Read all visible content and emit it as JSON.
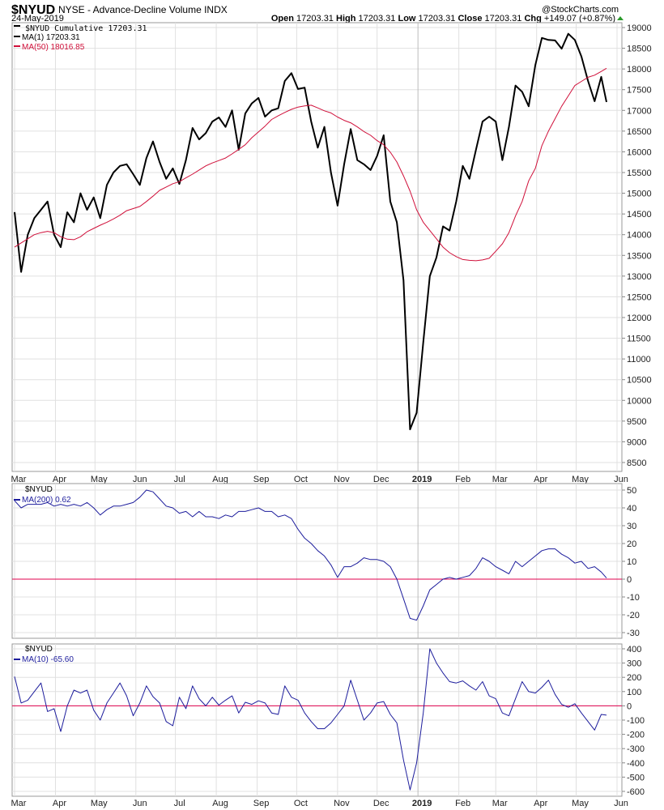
{
  "header": {
    "symbol": "$NYUD",
    "name": "NYSE - Advance-Decline Volume INDX",
    "brand": "@StockCharts.com",
    "date": "24-May-2019",
    "open_label": "Open",
    "open": "17203.31",
    "high_label": "High",
    "high": "17203.31",
    "low_label": "Low",
    "low": "17203.31",
    "close_label": "Close",
    "close": "17203.31",
    "chg_label": "Chg",
    "chg": "+149.07 (+0.87%)",
    "chg_direction": "up"
  },
  "colors": {
    "price": "#000000",
    "ma50": "#d0103a",
    "indicator": "#1c1c9c",
    "zero_line": "#e0004d",
    "grid": "#dddddd"
  },
  "chart_data": [
    {
      "type": "line",
      "panel": "main",
      "legend": [
        "$NYUD Cumulative 17203.31",
        "MA(1) 17203.31",
        "MA(50) 18016.85"
      ],
      "ylim": [
        8500,
        19000
      ],
      "yticks": [
        "19000",
        "18500",
        "18000",
        "17500",
        "17000",
        "16500",
        "16000",
        "15500",
        "15000",
        "14500",
        "14000",
        "13500",
        "13000",
        "12500",
        "12000",
        "11500",
        "11000",
        "10500",
        "10000",
        "9500",
        "9000",
        "8500"
      ],
      "xticks": [
        "Mar",
        "Apr",
        "May",
        "Jun",
        "Jul",
        "Aug",
        "Sep",
        "Oct",
        "Nov",
        "Dec",
        "2019",
        "Feb",
        "Mar",
        "Apr",
        "May",
        "Jun"
      ],
      "grid": true,
      "series": [
        {
          "name": "MA(1)",
          "color": "#000000",
          "values": [
            14543,
            13100,
            14000,
            14400,
            14600,
            14800,
            14000,
            13700,
            14540,
            14300,
            15000,
            14600,
            14900,
            14400,
            15200,
            15500,
            15660,
            15700,
            15460,
            15200,
            15850,
            16250,
            15755,
            15350,
            15600,
            15225,
            15800,
            16575,
            16300,
            16450,
            16730,
            16830,
            16600,
            17000,
            16050,
            16925,
            17170,
            17300,
            16850,
            17000,
            17050,
            17710,
            17900,
            17515,
            17550,
            16730,
            16100,
            16600,
            15500,
            14700,
            15700,
            16550,
            15800,
            15700,
            15560,
            15900,
            16400,
            14800,
            14300,
            12900,
            9300,
            9700,
            11400,
            13000,
            13450,
            14200,
            14100,
            14800,
            15660,
            15350,
            16050,
            16730,
            16850,
            16730,
            15800,
            16600,
            17600,
            17450,
            17100,
            18095,
            18750,
            18700,
            18690,
            18490,
            18850,
            18700,
            18300,
            17710,
            17220,
            17810,
            17203.31
          ]
        },
        {
          "name": "MA(50)",
          "color": "#d0103a",
          "values": [
            13700,
            13800,
            13900,
            14000,
            14050,
            14080,
            14050,
            13950,
            13890,
            13880,
            13950,
            14070,
            14150,
            14230,
            14300,
            14380,
            14470,
            14580,
            14630,
            14680,
            14800,
            14930,
            15070,
            15150,
            15230,
            15280,
            15370,
            15460,
            15560,
            15660,
            15730,
            15790,
            15850,
            15950,
            16060,
            16170,
            16340,
            16480,
            16620,
            16780,
            16870,
            16950,
            17025,
            17080,
            17110,
            17125,
            17060,
            16990,
            16940,
            16840,
            16760,
            16700,
            16600,
            16490,
            16400,
            16270,
            16170,
            15990,
            15755,
            15420,
            15050,
            14600,
            14300,
            14100,
            13900,
            13700,
            13565,
            13470,
            13400,
            13380,
            13370,
            13390,
            13430,
            13600,
            13780,
            14050,
            14450,
            14800,
            15300,
            15600,
            16150,
            16500,
            16800,
            17100,
            17350,
            17600,
            17700,
            17800,
            17850,
            17940,
            18016.85
          ]
        }
      ]
    },
    {
      "type": "line",
      "panel": "indicator-1",
      "legend": [
        "$NYUD",
        "MA(200) 0.62"
      ],
      "ylim": [
        -30,
        50
      ],
      "yticks": [
        "50",
        "40",
        "30",
        "20",
        "10",
        "0",
        "-10",
        "-20",
        "-30"
      ],
      "reference_line": 0,
      "grid": true,
      "series": [
        {
          "name": "MA(200)",
          "color": "#1c1c9c",
          "values": [
            44,
            40,
            42,
            42,
            42,
            43,
            41,
            42,
            41,
            42,
            41,
            43,
            40,
            36,
            39,
            41,
            41,
            42,
            43,
            46,
            50,
            49,
            45,
            41,
            40,
            37,
            38,
            35,
            38,
            35,
            35,
            34,
            36,
            35,
            38,
            38,
            39,
            40,
            38,
            38,
            35,
            36,
            34,
            28,
            23,
            20,
            16,
            13,
            8,
            1,
            7,
            7,
            9,
            12,
            11,
            11,
            10,
            7,
            0,
            -11,
            -22,
            -23,
            -15,
            -6,
            -3,
            0,
            1,
            0,
            1,
            2,
            6,
            12,
            10,
            7,
            5,
            3,
            10,
            7,
            10,
            13,
            16,
            17,
            17,
            14,
            12,
            9,
            10,
            6,
            7,
            4,
            0.62
          ]
        }
      ]
    },
    {
      "type": "line",
      "panel": "indicator-2",
      "legend": [
        "$NYUD",
        "MA(10) -65.60"
      ],
      "ylim": [
        -600,
        400
      ],
      "yticks": [
        "400",
        "300",
        "200",
        "100",
        "0",
        "-100",
        "-200",
        "-300",
        "-400",
        "-500",
        "-600"
      ],
      "reference_line": 0,
      "grid": true,
      "series": [
        {
          "name": "MA(10)",
          "color": "#1c1c9c",
          "values": [
            205,
            20,
            40,
            100,
            160,
            -40,
            -20,
            -180,
            0,
            110,
            90,
            110,
            -30,
            -100,
            20,
            90,
            160,
            70,
            -70,
            20,
            140,
            65,
            20,
            -110,
            -140,
            60,
            -20,
            140,
            50,
            0,
            60,
            5,
            40,
            70,
            -50,
            25,
            10,
            35,
            20,
            -50,
            -60,
            140,
            60,
            40,
            -50,
            -110,
            -160,
            -160,
            -120,
            -60,
            0,
            180,
            40,
            -100,
            -50,
            20,
            30,
            -60,
            -120,
            -380,
            -590,
            -400,
            -50,
            400,
            300,
            230,
            170,
            160,
            175,
            140,
            110,
            170,
            70,
            50,
            -50,
            -70,
            50,
            170,
            100,
            90,
            130,
            180,
            80,
            10,
            -10,
            15,
            -50,
            -110,
            -170,
            -60,
            -65.6
          ]
        }
      ]
    }
  ],
  "dates": [
    "2018-03-01",
    "2018-03-06",
    "2018-03-11",
    "2018-03-16",
    "2018-03-21",
    "2018-03-26",
    "2018-03-31",
    "2018-04-05",
    "2018-04-10",
    "2018-04-15",
    "2018-04-20",
    "2018-04-25",
    "2018-04-30",
    "2018-05-05",
    "2018-05-10",
    "2018-05-15",
    "2018-05-20",
    "2018-05-25",
    "2018-05-30",
    "2018-06-04",
    "2018-06-09",
    "2018-06-14",
    "2018-06-19",
    "2018-06-24",
    "2018-06-29",
    "2018-07-04",
    "2018-07-09",
    "2018-07-14",
    "2018-07-19",
    "2018-07-24",
    "2018-07-29",
    "2018-08-03",
    "2018-08-08",
    "2018-08-13",
    "2018-08-18",
    "2018-08-23",
    "2018-08-28",
    "2018-09-02",
    "2018-09-07",
    "2018-09-12",
    "2018-09-17",
    "2018-09-22",
    "2018-09-27",
    "2018-10-02",
    "2018-10-07",
    "2018-10-12",
    "2018-10-17",
    "2018-10-22",
    "2018-10-27",
    "2018-11-01",
    "2018-11-06",
    "2018-11-11",
    "2018-11-16",
    "2018-11-21",
    "2018-11-26",
    "2018-12-01",
    "2018-12-06",
    "2018-12-11",
    "2018-12-16",
    "2018-12-21",
    "2018-12-26",
    "2018-12-31",
    "2019-01-05",
    "2019-01-10",
    "2019-01-15",
    "2019-01-20",
    "2019-01-25",
    "2019-01-30",
    "2019-02-04",
    "2019-02-09",
    "2019-02-14",
    "2019-02-19",
    "2019-02-24",
    "2019-03-01",
    "2019-03-06",
    "2019-03-11",
    "2019-03-16",
    "2019-03-21",
    "2019-03-26",
    "2019-03-31",
    "2019-04-05",
    "2019-04-10",
    "2019-04-15",
    "2019-04-20",
    "2019-04-25",
    "2019-04-30",
    "2019-05-05",
    "2019-05-10",
    "2019-05-15",
    "2019-05-20",
    "2019-05-24"
  ],
  "month_ticks": [
    "2018-03-01",
    "2018-04-01",
    "2018-05-01",
    "2018-06-01",
    "2018-07-01",
    "2018-08-01",
    "2018-09-01",
    "2018-10-01",
    "2018-11-01",
    "2018-12-01",
    "2019-01-01",
    "2019-02-01",
    "2019-03-01",
    "2019-04-01",
    "2019-05-01",
    "2019-06-01"
  ]
}
